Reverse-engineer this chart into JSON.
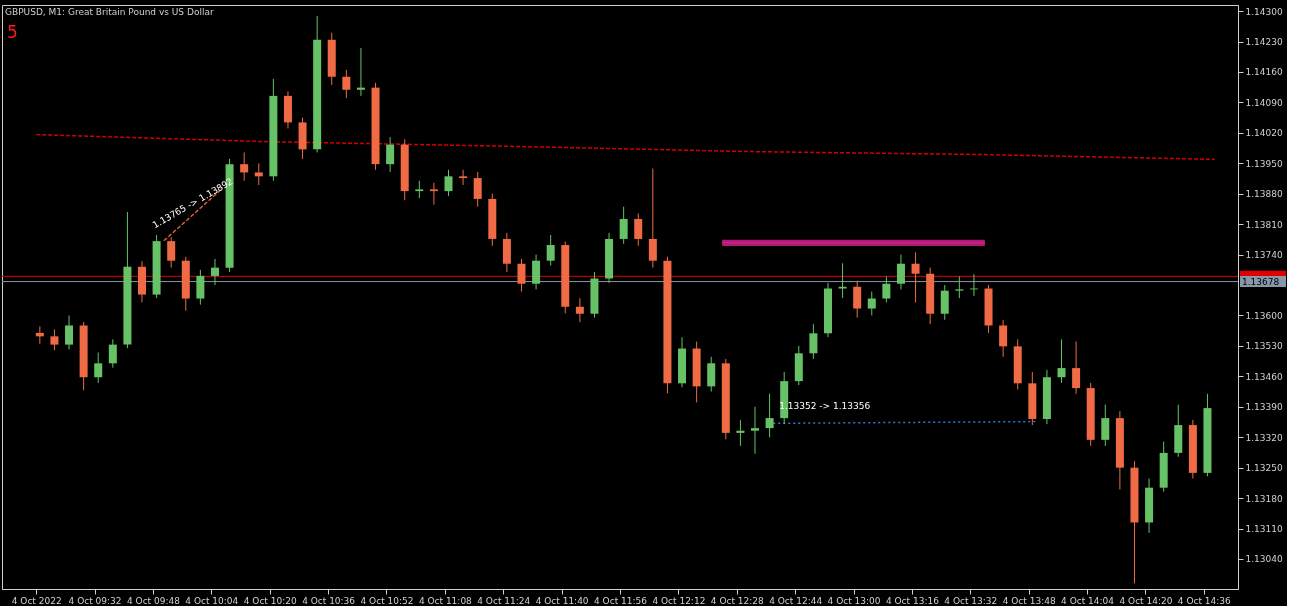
{
  "chart_data": {
    "type": "candlestick",
    "title": "GBPUSD, M1:  Great Britain Pound vs US Dollar",
    "annotations": [
      "5",
      {
        "text": "1.13765 -> 1.13892",
        "x": "2022-10-04T09:49",
        "y": 1.13765
      },
      {
        "text": "1.13352 -> 1.13356",
        "x": "2022-10-04T12:38",
        "y": 1.13352
      }
    ],
    "x": [
      "2022-10-04T09:17",
      "2022-10-04T09:21",
      "2022-10-04T09:25",
      "2022-10-04T09:29",
      "2022-10-04T09:33",
      "2022-10-04T09:37",
      "2022-10-04T09:41",
      "2022-10-04T09:45",
      "2022-10-04T09:49",
      "2022-10-04T09:53",
      "2022-10-04T09:57",
      "2022-10-04T10:01",
      "2022-10-04T10:05",
      "2022-10-04T10:09",
      "2022-10-04T10:13",
      "2022-10-04T10:17",
      "2022-10-04T10:21",
      "2022-10-04T10:25",
      "2022-10-04T10:29",
      "2022-10-04T10:33",
      "2022-10-04T10:37",
      "2022-10-04T10:41",
      "2022-10-04T10:45",
      "2022-10-04T10:49",
      "2022-10-04T10:53",
      "2022-10-04T10:57",
      "2022-10-04T11:01",
      "2022-10-04T11:05",
      "2022-10-04T11:09",
      "2022-10-04T11:13",
      "2022-10-04T11:17",
      "2022-10-04T11:21",
      "2022-10-04T11:25",
      "2022-10-04T11:29",
      "2022-10-04T11:33",
      "2022-10-04T11:37",
      "2022-10-04T11:41",
      "2022-10-04T11:45",
      "2022-10-04T11:49",
      "2022-10-04T11:53",
      "2022-10-04T11:57",
      "2022-10-04T12:01",
      "2022-10-04T12:05",
      "2022-10-04T12:09",
      "2022-10-04T12:13",
      "2022-10-04T12:17",
      "2022-10-04T12:21",
      "2022-10-04T12:25",
      "2022-10-04T12:29",
      "2022-10-04T12:33",
      "2022-10-04T12:37",
      "2022-10-04T12:41",
      "2022-10-04T12:45",
      "2022-10-04T12:49",
      "2022-10-04T12:53",
      "2022-10-04T12:57",
      "2022-10-04T13:01",
      "2022-10-04T13:05",
      "2022-10-04T13:09",
      "2022-10-04T13:13",
      "2022-10-04T13:17",
      "2022-10-04T13:21",
      "2022-10-04T13:25",
      "2022-10-04T13:29",
      "2022-10-04T13:33",
      "2022-10-04T13:37",
      "2022-10-04T13:41",
      "2022-10-04T13:45",
      "2022-10-04T13:49",
      "2022-10-04T13:53",
      "2022-10-04T13:57",
      "2022-10-04T14:01",
      "2022-10-04T14:05",
      "2022-10-04T14:09",
      "2022-10-04T14:13",
      "2022-10-04T14:17",
      "2022-10-04T14:21",
      "2022-10-04T14:25",
      "2022-10-04T14:29",
      "2022-10-04T14:33",
      "2022-10-04T14:37"
    ],
    "ohlc": [
      [
        1.1356,
        1.13575,
        1.13535,
        1.13552
      ],
      [
        1.13552,
        1.13568,
        1.1352,
        1.13533
      ],
      [
        1.13533,
        1.136,
        1.13522,
        1.13577
      ],
      [
        1.13577,
        1.13585,
        1.13428,
        1.13458
      ],
      [
        1.13458,
        1.13515,
        1.13445,
        1.1349
      ],
      [
        1.1349,
        1.13545,
        1.1348,
        1.13533
      ],
      [
        1.13533,
        1.13838,
        1.13525,
        1.13712
      ],
      [
        1.13712,
        1.13725,
        1.1363,
        1.13648
      ],
      [
        1.13648,
        1.13785,
        1.1364,
        1.13771
      ],
      [
        1.13771,
        1.1378,
        1.1371,
        1.13726
      ],
      [
        1.13726,
        1.13735,
        1.13611,
        1.13639
      ],
      [
        1.13639,
        1.13705,
        1.13625,
        1.13691
      ],
      [
        1.13691,
        1.1373,
        1.1367,
        1.1371
      ],
      [
        1.1371,
        1.1396,
        1.137,
        1.13948
      ],
      [
        1.13948,
        1.13975,
        1.1391,
        1.13929
      ],
      [
        1.13929,
        1.1395,
        1.139,
        1.1392
      ],
      [
        1.1392,
        1.14144,
        1.1391,
        1.14105
      ],
      [
        1.14105,
        1.14115,
        1.1403,
        1.14044
      ],
      [
        1.14044,
        1.14055,
        1.1396,
        1.13982
      ],
      [
        1.13982,
        1.14289,
        1.13975,
        1.14234
      ],
      [
        1.14234,
        1.1425,
        1.1413,
        1.14149
      ],
      [
        1.14149,
        1.14165,
        1.141,
        1.14119
      ],
      [
        1.14119,
        1.14215,
        1.14105,
        1.14124
      ],
      [
        1.14124,
        1.14135,
        1.13935,
        1.13948
      ],
      [
        1.13948,
        1.1401,
        1.1393,
        1.13993
      ],
      [
        1.13993,
        1.14005,
        1.13865,
        1.13886
      ],
      [
        1.13886,
        1.1391,
        1.1387,
        1.1389
      ],
      [
        1.1389,
        1.13905,
        1.13855,
        1.13886
      ],
      [
        1.13886,
        1.13935,
        1.13875,
        1.1392
      ],
      [
        1.1392,
        1.13935,
        1.139,
        1.13916
      ],
      [
        1.13916,
        1.1393,
        1.1385,
        1.13868
      ],
      [
        1.13868,
        1.1388,
        1.1376,
        1.13776
      ],
      [
        1.13776,
        1.1379,
        1.137,
        1.13719
      ],
      [
        1.13719,
        1.1373,
        1.13655,
        1.13673
      ],
      [
        1.13673,
        1.1374,
        1.1366,
        1.13726
      ],
      [
        1.13726,
        1.13785,
        1.13715,
        1.13762
      ],
      [
        1.13762,
        1.1377,
        1.13605,
        1.1362
      ],
      [
        1.1362,
        1.1364,
        1.13585,
        1.13604
      ],
      [
        1.13604,
        1.137,
        1.13595,
        1.13685
      ],
      [
        1.13685,
        1.1379,
        1.13675,
        1.13776
      ],
      [
        1.13776,
        1.1385,
        1.13765,
        1.13822
      ],
      [
        1.13822,
        1.13835,
        1.1376,
        1.13776
      ],
      [
        1.13776,
        1.13938,
        1.1371,
        1.13726
      ],
      [
        1.13726,
        1.13735,
        1.13421,
        1.13444
      ],
      [
        1.13444,
        1.1355,
        1.13435,
        1.13524
      ],
      [
        1.13524,
        1.1354,
        1.134,
        1.13437
      ],
      [
        1.13437,
        1.13505,
        1.13425,
        1.1349
      ],
      [
        1.1349,
        1.135,
        1.13315,
        1.1333
      ],
      [
        1.1333,
        1.1336,
        1.133,
        1.13335
      ],
      [
        1.13335,
        1.1339,
        1.13282,
        1.13341
      ],
      [
        1.13341,
        1.1342,
        1.1332,
        1.13364
      ],
      [
        1.13364,
        1.1347,
        1.1335,
        1.13449
      ],
      [
        1.13449,
        1.1353,
        1.1344,
        1.13513
      ],
      [
        1.13513,
        1.1358,
        1.135,
        1.13559
      ],
      [
        1.13559,
        1.13675,
        1.1355,
        1.13662
      ],
      [
        1.13662,
        1.1372,
        1.1364,
        1.13666
      ],
      [
        1.13666,
        1.1368,
        1.13595,
        1.13616
      ],
      [
        1.13616,
        1.13655,
        1.136,
        1.13639
      ],
      [
        1.13639,
        1.1369,
        1.1363,
        1.13673
      ],
      [
        1.13673,
        1.1374,
        1.1366,
        1.13719
      ],
      [
        1.13719,
        1.13745,
        1.1363,
        1.13696
      ],
      [
        1.13696,
        1.1371,
        1.1358,
        1.13604
      ],
      [
        1.13604,
        1.1367,
        1.1359,
        1.13657
      ],
      [
        1.13657,
        1.1369,
        1.1364,
        1.1366
      ],
      [
        1.1366,
        1.13695,
        1.13645,
        1.13662
      ],
      [
        1.13662,
        1.1367,
        1.1356,
        1.13577
      ],
      [
        1.13577,
        1.1359,
        1.13505,
        1.13529
      ],
      [
        1.13529,
        1.13545,
        1.1343,
        1.13444
      ],
      [
        1.13444,
        1.1347,
        1.13348,
        1.13362
      ],
      [
        1.13362,
        1.13475,
        1.1335,
        1.13458
      ],
      [
        1.13458,
        1.13545,
        1.13445,
        1.13479
      ],
      [
        1.13479,
        1.1354,
        1.1342,
        1.13433
      ],
      [
        1.13433,
        1.13445,
        1.133,
        1.13314
      ],
      [
        1.13314,
        1.13395,
        1.133,
        1.13364
      ],
      [
        1.13364,
        1.1338,
        1.132,
        1.1325
      ],
      [
        1.1325,
        1.13265,
        1.12984,
        1.13124
      ],
      [
        1.13124,
        1.13225,
        1.131,
        1.13204
      ],
      [
        1.13204,
        1.1331,
        1.13195,
        1.13284
      ],
      [
        1.13284,
        1.13395,
        1.13275,
        1.13348
      ],
      [
        1.13348,
        1.1336,
        1.13225,
        1.13238
      ],
      [
        1.13238,
        1.1342,
        1.1323,
        1.13387
      ]
    ],
    "colors": [
      "#ef6a45",
      "#ef6a45",
      "#67c267",
      "#ef6a45",
      "#67c267",
      "#67c267",
      "#67c267",
      "#ef6a45",
      "#67c267",
      "#ef6a45",
      "#ef6a45",
      "#67c267",
      "#67c267",
      "#67c267",
      "#ef6a45",
      "#ef6a45",
      "#67c267",
      "#ef6a45",
      "#ef6a45",
      "#67c267",
      "#ef6a45",
      "#ef6a45",
      "#67c267",
      "#ef6a45",
      "#67c267",
      "#ef6a45",
      "#67c267",
      "#ef6a45",
      "#67c267",
      "#ef6a45",
      "#ef6a45",
      "#ef6a45",
      "#ef6a45",
      "#ef6a45",
      "#67c267",
      "#67c267",
      "#ef6a45",
      "#ef6a45",
      "#67c267",
      "#67c267",
      "#67c267",
      "#ef6a45",
      "#ef6a45",
      "#ef6a45",
      "#67c267",
      "#ef6a45",
      "#67c267",
      "#ef6a45",
      "#67c267",
      "#67c267",
      "#67c267",
      "#67c267",
      "#67c267",
      "#67c267",
      "#67c267",
      "#67c267",
      "#ef6a45",
      "#67c267",
      "#67c267",
      "#67c267",
      "#ef6a45",
      "#ef6a45",
      "#67c267",
      "#67c267",
      "#67c267",
      "#ef6a45",
      "#ef6a45",
      "#ef6a45",
      "#ef6a45",
      "#67c267",
      "#67c267",
      "#ef6a45",
      "#ef6a45",
      "#67c267",
      "#ef6a45",
      "#ef6a45",
      "#67c267",
      "#67c267",
      "#67c267",
      "#ef6a45",
      "#67c267"
    ],
    "series": [
      {
        "type": "line",
        "color": "#d40000",
        "line_style": "dashed",
        "x": [
          "2022-10-04T09:16",
          "2022-10-04T10:18",
          "2022-10-04T11:26",
          "2022-10-04T12:31",
          "2022-10-04T13:36",
          "2022-10-04T14:39"
        ],
        "values": [
          1.14016,
          1.14,
          1.13989,
          1.13977,
          1.1397,
          1.13959
        ]
      },
      {
        "type": "line",
        "color": "#cc1f8a",
        "line_style": "solid",
        "x": [
          "2022-10-04T12:24",
          "2022-10-04T13:36"
        ],
        "values": [
          1.13767,
          1.13767
        ],
        "lower": [
          1.1376,
          1.1376
        ],
        "upper": [
          1.13774,
          1.13774
        ]
      },
      {
        "type": "line",
        "color": "#e0622e",
        "line_style": "dashed",
        "x": [
          "2022-10-04T09:51",
          "2022-10-04T10:07"
        ],
        "values": [
          1.13772,
          1.13892
        ]
      },
      {
        "type": "line",
        "color": "#2a7fd4",
        "line_style": "dotted",
        "x": [
          "2022-10-04T12:38",
          "2022-10-04T13:50"
        ],
        "values": [
          1.13352,
          1.13356
        ]
      }
    ],
    "ref_lines": [
      {
        "axis": "y",
        "value": 1.1369,
        "label": null,
        "color": "#e00000"
      },
      {
        "axis": "y",
        "value": 1.13678,
        "label": "1.13678",
        "color": "#8797a8"
      }
    ],
    "xlim": [
      "2022-10-04T09:08",
      "2022-10-04T14:44"
    ],
    "xticks": [
      {
        "value": "2022-10-04T09:16",
        "label": "4 Oct 2022"
      },
      {
        "value": "2022-10-04T09:32",
        "label": "4 Oct 09:32"
      },
      {
        "value": "2022-10-04T09:48",
        "label": "4 Oct 09:48"
      },
      {
        "value": "2022-10-04T10:04",
        "label": "4 Oct 10:04"
      },
      {
        "value": "2022-10-04T10:20",
        "label": "4 Oct 10:20"
      },
      {
        "value": "2022-10-04T10:36",
        "label": "4 Oct 10:36"
      },
      {
        "value": "2022-10-04T10:52",
        "label": "4 Oct 10:52"
      },
      {
        "value": "2022-10-04T11:08",
        "label": "4 Oct 11:08"
      },
      {
        "value": "2022-10-04T11:24",
        "label": "4 Oct 11:24"
      },
      {
        "value": "2022-10-04T11:40",
        "label": "4 Oct 11:40"
      },
      {
        "value": "2022-10-04T11:56",
        "label": "4 Oct 11:56"
      },
      {
        "value": "2022-10-04T12:12",
        "label": "4 Oct 12:12"
      },
      {
        "value": "2022-10-04T12:28",
        "label": "4 Oct 12:28"
      },
      {
        "value": "2022-10-04T12:44",
        "label": "4 Oct 12:44"
      },
      {
        "value": "2022-10-04T13:00",
        "label": "4 Oct 13:00"
      },
      {
        "value": "2022-10-04T13:16",
        "label": "4 Oct 13:16"
      },
      {
        "value": "2022-10-04T13:32",
        "label": "4 Oct 13:32"
      },
      {
        "value": "2022-10-04T13:48",
        "label": "4 Oct 13:48"
      },
      {
        "value": "2022-10-04T14:04",
        "label": "4 Oct 14:04"
      },
      {
        "value": "2022-10-04T14:20",
        "label": "4 Oct 14:20"
      },
      {
        "value": "2022-10-04T14:36",
        "label": "4 Oct 14:36"
      }
    ],
    "ylim": [
      1.12971,
      1.14314
    ],
    "yticks": [
      {
        "value": 1.143,
        "label": "1.14300"
      },
      {
        "value": 1.1423,
        "label": "1.14230"
      },
      {
        "value": 1.1416,
        "label": "1.14160"
      },
      {
        "value": 1.1409,
        "label": "1.14090"
      },
      {
        "value": 1.1402,
        "label": "1.14020"
      },
      {
        "value": 1.1395,
        "label": "1.13950"
      },
      {
        "value": 1.1388,
        "label": "1.13880"
      },
      {
        "value": 1.1381,
        "label": "1.13810"
      },
      {
        "value": 1.1374,
        "label": "1.13740"
      },
      {
        "value": 1.136,
        "label": "1.13600"
      },
      {
        "value": 1.1353,
        "label": "1.13530"
      },
      {
        "value": 1.1346,
        "label": "1.13460"
      },
      {
        "value": 1.1339,
        "label": "1.13390"
      },
      {
        "value": 1.1332,
        "label": "1.13320"
      },
      {
        "value": 1.1325,
        "label": "1.13250"
      },
      {
        "value": 1.1318,
        "label": "1.13180"
      },
      {
        "value": 1.1311,
        "label": "1.13110"
      },
      {
        "value": 1.1304,
        "label": "1.13040"
      }
    ],
    "grid": false
  }
}
